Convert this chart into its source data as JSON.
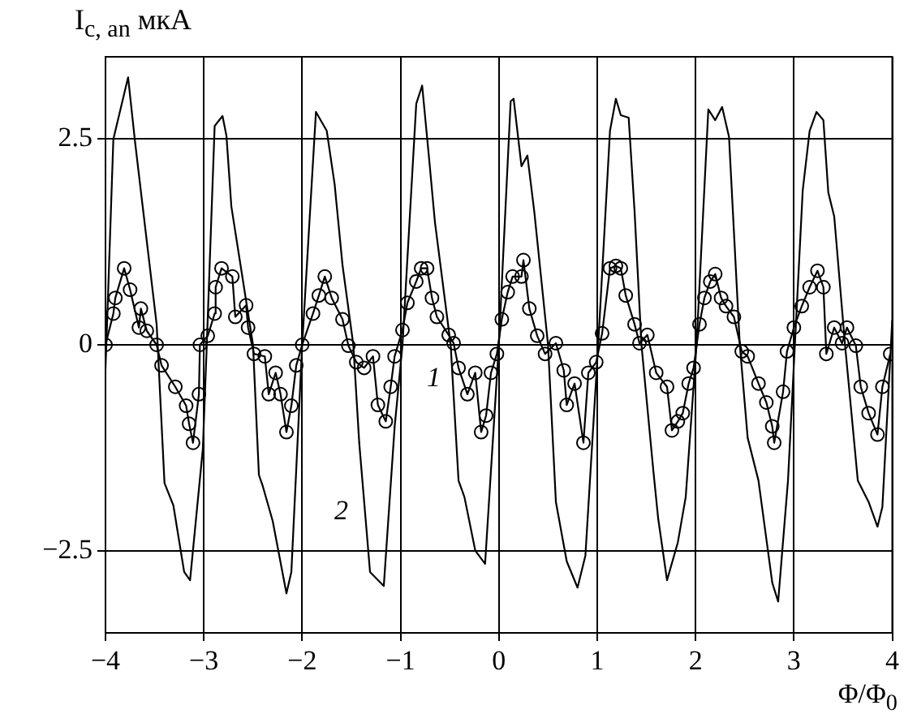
{
  "chart_data": {
    "type": "line",
    "ylabel": "I$_{c, an}$ мкА",
    "xlabel": "Φ/Φ$_{0}$",
    "xlim": [
      -4,
      4
    ],
    "ylim": [
      -3.5,
      3.5
    ],
    "xticks": [
      -4,
      -3,
      -2,
      -1,
      0,
      1,
      2,
      3,
      4
    ],
    "yticks": [
      -2.5,
      0,
      2.5
    ],
    "grid": true,
    "legend": false,
    "annotations": [
      "1",
      "2"
    ],
    "series": [
      {
        "color": "#000000",
        "marker": "circle",
        "x": [
          -4.0,
          -3.92,
          -3.9,
          -3.81,
          -3.75,
          -3.66,
          -3.64,
          -3.58,
          -3.48,
          -3.43,
          -3.29,
          -3.18,
          -3.15,
          -3.11,
          -3.05,
          -3.04,
          -2.96,
          -2.89,
          -2.88,
          -2.82,
          -2.71,
          -2.68,
          -2.57,
          -2.55,
          -2.49,
          -2.38,
          -2.34,
          -2.27,
          -2.22,
          -2.16,
          -2.11,
          -2.06,
          -2.0,
          -1.89,
          -1.83,
          -1.77,
          -1.7,
          -1.59,
          -1.53,
          -1.45,
          -1.37,
          -1.28,
          -1.23,
          -1.15,
          -1.1,
          -1.06,
          -0.98,
          -0.93,
          -0.84,
          -0.79,
          -0.73,
          -0.68,
          -0.63,
          -0.51,
          -0.46,
          -0.41,
          -0.32,
          -0.24,
          -0.18,
          -0.13,
          -0.08,
          -0.02,
          0.03,
          0.09,
          0.14,
          0.23,
          0.25,
          0.31,
          0.39,
          0.47,
          0.58,
          0.66,
          0.69,
          0.77,
          0.86,
          0.91,
          0.99,
          1.05,
          1.13,
          1.19,
          1.24,
          1.29,
          1.38,
          1.43,
          1.51,
          1.6,
          1.71,
          1.76,
          1.82,
          1.87,
          1.93,
          1.98,
          2.04,
          2.09,
          2.15,
          2.2,
          2.26,
          2.31,
          2.39,
          2.47,
          2.53,
          2.64,
          2.72,
          2.78,
          2.8,
          2.89,
          2.93,
          3.0,
          3.08,
          3.16,
          3.24,
          3.3,
          3.33,
          3.41,
          3.49,
          3.54,
          3.63,
          3.68,
          3.76,
          3.85,
          3.9,
          3.98
        ],
        "values": [
          0,
          0.38,
          0.57,
          0.93,
          0.67,
          0.21,
          0.44,
          0.17,
          0,
          -0.25,
          -0.51,
          -0.74,
          -0.96,
          -1.19,
          -0.6,
          0,
          0.11,
          0.38,
          0.7,
          0.93,
          0.83,
          0.34,
          0.48,
          0.21,
          -0.11,
          -0.14,
          -0.6,
          -0.34,
          -0.6,
          -1.06,
          -0.74,
          -0.25,
          0,
          0.38,
          0.6,
          0.83,
          0.57,
          0.31,
          -0.01,
          -0.21,
          -0.28,
          -0.14,
          -0.73,
          -0.93,
          -0.51,
          -0.14,
          0.18,
          0.51,
          0.77,
          0.93,
          0.93,
          0.57,
          0.34,
          0.12,
          0.02,
          -0.28,
          -0.6,
          -0.34,
          -1.06,
          -0.86,
          -0.34,
          -0.11,
          0.31,
          0.64,
          0.83,
          0.83,
          1.03,
          0.44,
          0.11,
          -0.11,
          0.02,
          -0.31,
          -0.73,
          -0.47,
          -1.19,
          -0.34,
          -0.21,
          0.14,
          0.93,
          0.96,
          0.93,
          0.6,
          0.25,
          0.02,
          0.12,
          -0.34,
          -0.51,
          -1.04,
          -0.93,
          -0.83,
          -0.47,
          -0.28,
          0.25,
          0.57,
          0.77,
          0.86,
          0.57,
          0.47,
          0.34,
          -0.08,
          -0.14,
          -0.47,
          -0.7,
          -0.99,
          -1.19,
          -0.57,
          -0.08,
          0.21,
          0.47,
          0.7,
          0.9,
          0.7,
          -0.11,
          0.21,
          0.02,
          0.21,
          -0.01,
          -0.51,
          -0.83,
          -1.09,
          -0.51,
          -0.11
        ]
      },
      {
        "color": "#000000",
        "marker": "none",
        "x": [
          -4.0,
          -3.92,
          -3.77,
          -3.7,
          -3.48,
          -3.4,
          -3.31,
          -3.2,
          -3.14,
          -3.01,
          -2.97,
          -2.89,
          -2.81,
          -2.77,
          -2.72,
          -2.5,
          -2.44,
          -2.4,
          -2.3,
          -2.16,
          -2.11,
          -2.0,
          -1.86,
          -1.75,
          -1.67,
          -1.59,
          -1.48,
          -1.42,
          -1.31,
          -1.17,
          -1.06,
          -0.98,
          -0.84,
          -0.78,
          -0.71,
          -0.65,
          -0.49,
          -0.41,
          -0.35,
          -0.24,
          -0.14,
          0.0,
          0.12,
          0.15,
          0.23,
          0.29,
          0.36,
          0.5,
          0.58,
          0.69,
          0.8,
          0.88,
          1.01,
          1.13,
          1.19,
          1.24,
          1.32,
          1.38,
          1.45,
          1.57,
          1.62,
          1.71,
          1.82,
          1.9,
          2.01,
          2.13,
          2.2,
          2.27,
          2.34,
          2.45,
          2.53,
          2.64,
          2.78,
          2.84,
          2.94,
          3.01,
          3.09,
          3.16,
          3.23,
          3.3,
          3.35,
          3.41,
          3.52,
          3.65,
          3.76,
          3.85,
          3.9,
          4.0
        ],
        "values": [
          -0.3,
          2.5,
          3.25,
          2.47,
          0.25,
          -1.68,
          -1.95,
          -2.76,
          -2.86,
          -1.26,
          0,
          2.66,
          2.78,
          2.54,
          1.68,
          0,
          -1.58,
          -1.72,
          -2.14,
          -3.02,
          -2.76,
          0,
          2.83,
          2.6,
          1.95,
          0.97,
          0,
          -1.19,
          -2.76,
          -2.93,
          -1.0,
          0,
          2.93,
          3.15,
          2.27,
          1.49,
          0,
          -1.65,
          -1.85,
          -2.5,
          -2.66,
          0,
          2.96,
          2.99,
          2.17,
          2.3,
          1.62,
          0,
          -1.91,
          -2.63,
          -2.95,
          -2.56,
          0,
          2.6,
          2.99,
          2.79,
          2.76,
          1.62,
          0,
          -1.52,
          -2.11,
          -2.86,
          -2.4,
          -1.85,
          0,
          2.86,
          2.73,
          2.89,
          2.53,
          0,
          -1.13,
          -1.65,
          -2.89,
          -3.12,
          -1.65,
          0,
          1.88,
          2.6,
          2.83,
          2.73,
          1.85,
          1.56,
          0,
          -1.65,
          -1.91,
          -2.21,
          -1.97,
          0.3
        ]
      }
    ]
  }
}
